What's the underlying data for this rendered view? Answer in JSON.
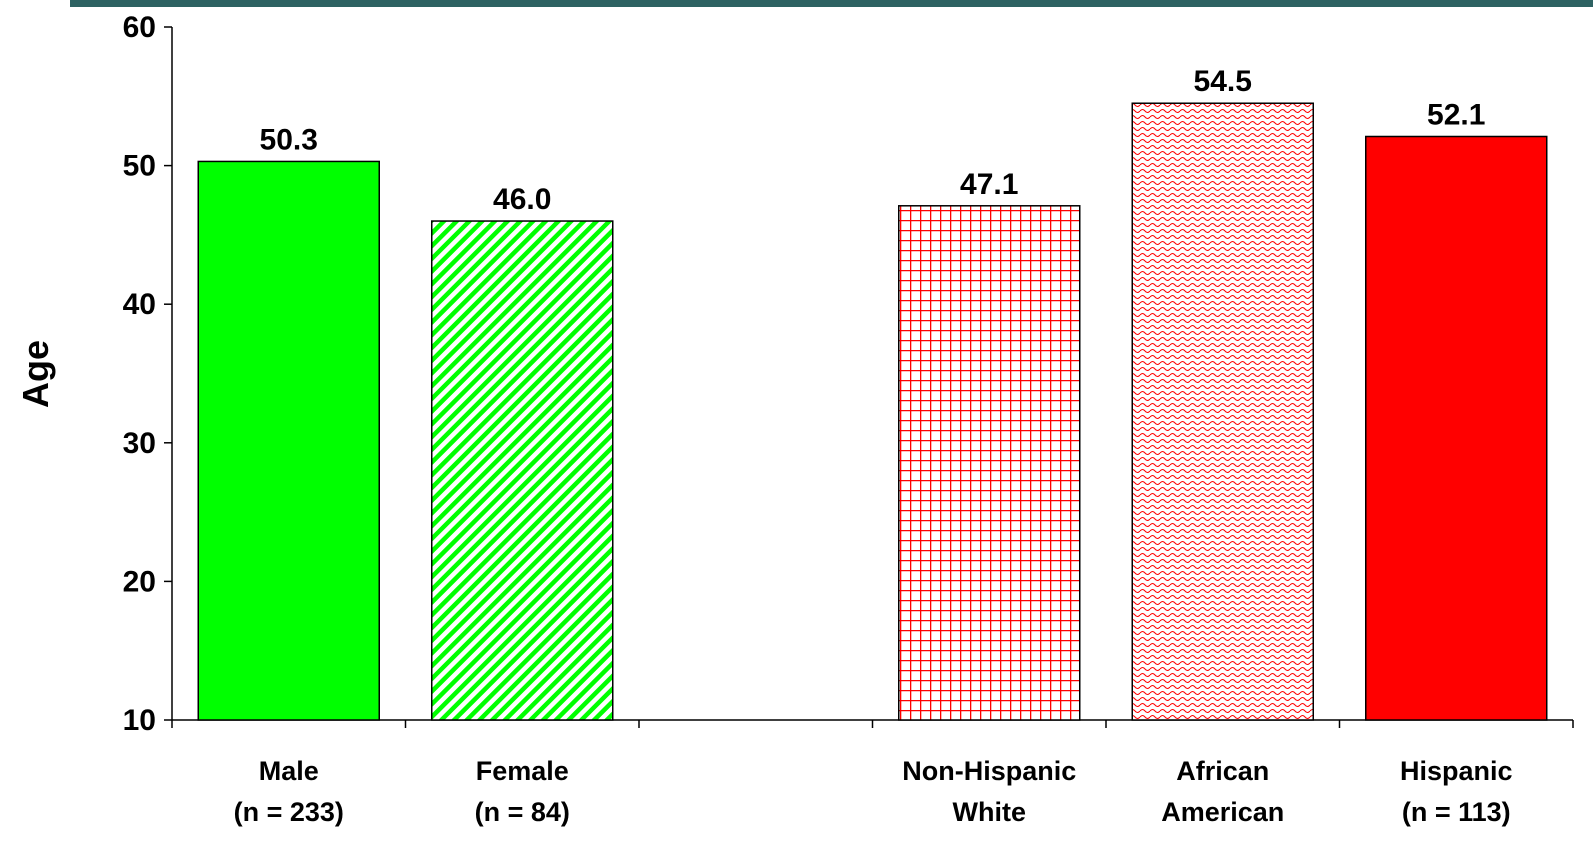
{
  "colors": {
    "header_bar": "#2E6262",
    "green": "#00FF00",
    "red": "#FF0000"
  },
  "chart_data": {
    "type": "bar",
    "title": "",
    "xlabel": "",
    "ylabel": "Age",
    "ylim": [
      10,
      60
    ],
    "yticks": [
      "10",
      "20",
      "30",
      "40",
      "50",
      "60"
    ],
    "grid": false,
    "categories": [
      {
        "lines": [
          "Male",
          "(n = 233)"
        ],
        "value": 50.3,
        "label": "50.3",
        "fill": "green-solid"
      },
      {
        "lines": [
          "Female",
          "(n = 84)"
        ],
        "value": 46.0,
        "label": "46.0",
        "fill": "green-diagonal"
      },
      {
        "lines": [
          "Non-Hispanic",
          "White"
        ],
        "value": 47.1,
        "label": "47.1",
        "fill": "red-grid"
      },
      {
        "lines": [
          "African",
          "American"
        ],
        "value": 54.5,
        "label": "54.5",
        "fill": "red-wave"
      },
      {
        "lines": [
          "Hispanic",
          "(n = 113)"
        ],
        "value": 52.1,
        "label": "52.1",
        "fill": "red-solid"
      }
    ]
  }
}
